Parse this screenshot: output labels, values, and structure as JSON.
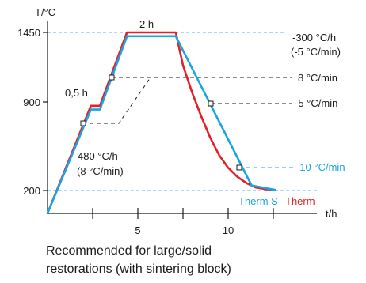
{
  "chart_data": {
    "type": "line",
    "ylabel": "T/°C",
    "xlabel": "t/h",
    "y_ticks": [
      {
        "value": 200,
        "label": "200"
      },
      {
        "value": 900,
        "label": "900"
      },
      {
        "value": 1450,
        "label": "1450"
      }
    ],
    "x_ticks": [
      {
        "value": 5,
        "label": "5"
      },
      {
        "value": 10,
        "label": "10"
      }
    ],
    "xlim": [
      0,
      12.5
    ],
    "ylim": [
      20,
      1580
    ],
    "x_minor_ticks": [
      2.5,
      5,
      7.5,
      10,
      12.5
    ],
    "series": [
      {
        "name": "Therm",
        "color": "#e32028",
        "x": [
          0,
          2.4,
          2.9,
          4.4,
          7.1,
          7.5,
          8.0,
          8.5,
          9.0,
          9.5,
          10.0,
          10.5,
          11.0,
          11.5,
          12.1,
          12.4
        ],
        "y": [
          20,
          870,
          870,
          1450,
          1450,
          1190,
          976,
          790,
          620,
          480,
          380,
          310,
          260,
          225,
          210,
          208
        ]
      },
      {
        "name": "Therm S",
        "color": "#1aa5e0",
        "x": [
          0,
          2.4,
          2.9,
          4.4,
          7.1,
          11.3,
          12.6
        ],
        "y": [
          20,
          840,
          840,
          1420,
          1420,
          240,
          205
        ]
      }
    ],
    "annotations": [
      {
        "text": "2 h"
      },
      {
        "text": "0,5 h"
      },
      {
        "text": "480 °C/h"
      },
      {
        "text": "(8 °C/min)"
      },
      {
        "text": "-300 °C/h"
      },
      {
        "text": "(-5 °C/min)"
      },
      {
        "text": "8 °C/min"
      },
      {
        "text": "-5 °C/min"
      },
      {
        "text": "-10 °C/min"
      }
    ]
  },
  "caption": {
    "line1": "Recommended for large/solid",
    "line2": "restorations (with sintering block)"
  }
}
